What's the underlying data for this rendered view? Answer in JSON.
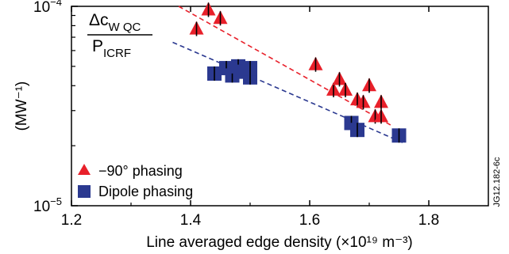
{
  "chart_data": {
    "type": "scatter",
    "ylabel": "(MW⁻¹)",
    "xlabel": "Line averaged edge density (×10¹⁹ m⁻³)",
    "annotation": {
      "numerator": "Δc",
      "numerator_sub": "W QC",
      "denominator": "P",
      "denominator_sub": "ICRF"
    },
    "side_label": "JG12.182-6c",
    "xlim": [
      1.2,
      1.9
    ],
    "ylim": [
      1e-05,
      0.0001
    ],
    "y_scale": "log",
    "x_ticks": [
      {
        "value": 1.2,
        "label": "1.2"
      },
      {
        "value": 1.4,
        "label": "1.4"
      },
      {
        "value": 1.6,
        "label": "1.6"
      },
      {
        "value": 1.8,
        "label": "1.8"
      }
    ],
    "y_ticks": [
      {
        "value": 1e-05,
        "base": "10",
        "exp": "−5"
      },
      {
        "value": 0.0001,
        "base": "10",
        "exp": "−4"
      }
    ],
    "series": [
      {
        "name": "−90° phasing",
        "marker": "triangle",
        "color": "#e8202a",
        "points": [
          {
            "x": 1.41,
            "y": 7.7e-05
          },
          {
            "x": 1.43,
            "y": 9.6e-05
          },
          {
            "x": 1.45,
            "y": 8.7e-05
          },
          {
            "x": 1.61,
            "y": 5.1e-05
          },
          {
            "x": 1.64,
            "y": 3.8e-05
          },
          {
            "x": 1.65,
            "y": 4.3e-05
          },
          {
            "x": 1.66,
            "y": 3.8e-05
          },
          {
            "x": 1.68,
            "y": 3.4e-05
          },
          {
            "x": 1.69,
            "y": 3.3e-05
          },
          {
            "x": 1.7,
            "y": 4e-05
          },
          {
            "x": 1.71,
            "y": 2.8e-05
          },
          {
            "x": 1.72,
            "y": 3.3e-05
          },
          {
            "x": 1.72,
            "y": 2.8e-05
          }
        ],
        "fit": [
          {
            "x": 1.38,
            "y": 0.0001
          },
          {
            "x": 1.74,
            "y": 2.5e-05
          }
        ]
      },
      {
        "name": "Dipole phasing",
        "marker": "square",
        "color": "#2b3990",
        "points": [
          {
            "x": 1.44,
            "y": 4.6e-05
          },
          {
            "x": 1.46,
            "y": 4.9e-05
          },
          {
            "x": 1.47,
            "y": 4.5e-05
          },
          {
            "x": 1.48,
            "y": 5e-05
          },
          {
            "x": 1.49,
            "y": 4.7e-05
          },
          {
            "x": 1.5,
            "y": 4.4e-05
          },
          {
            "x": 1.5,
            "y": 4.9e-05
          },
          {
            "x": 1.67,
            "y": 2.6e-05
          },
          {
            "x": 1.68,
            "y": 2.4e-05
          },
          {
            "x": 1.75,
            "y": 2.25e-05
          }
        ],
        "fit": [
          {
            "x": 1.37,
            "y": 6.6e-05
          },
          {
            "x": 1.76,
            "y": 2.05e-05
          }
        ]
      }
    ],
    "legend_position": "bottom-left"
  }
}
